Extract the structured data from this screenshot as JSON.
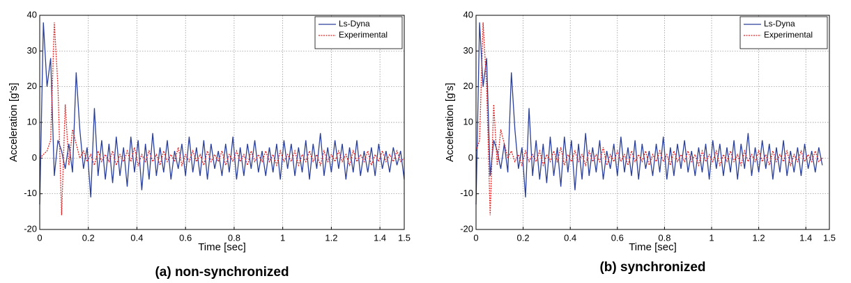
{
  "chart_data": [
    {
      "type": "line",
      "caption": "(a)  non-synchronized",
      "xlabel": "Time [sec]",
      "ylabel": "Acceleration [g's]",
      "x": [
        0,
        0.015,
        0.03,
        0.045,
        0.06,
        0.075,
        0.09,
        0.105,
        0.12,
        0.135,
        0.15,
        0.165,
        0.18,
        0.195,
        0.21,
        0.225,
        0.24,
        0.255,
        0.27,
        0.285,
        0.3,
        0.315,
        0.33,
        0.345,
        0.36,
        0.375,
        0.39,
        0.405,
        0.42,
        0.435,
        0.45,
        0.465,
        0.48,
        0.495,
        0.51,
        0.525,
        0.54,
        0.555,
        0.57,
        0.585,
        0.6,
        0.615,
        0.63,
        0.645,
        0.66,
        0.675,
        0.69,
        0.705,
        0.72,
        0.735,
        0.75,
        0.765,
        0.78,
        0.795,
        0.81,
        0.825,
        0.84,
        0.855,
        0.87,
        0.885,
        0.9,
        0.915,
        0.93,
        0.945,
        0.96,
        0.975,
        0.99,
        1.005,
        1.02,
        1.035,
        1.05,
        1.065,
        1.08,
        1.095,
        1.11,
        1.125,
        1.14,
        1.155,
        1.17,
        1.185,
        1.2,
        1.215,
        1.23,
        1.245,
        1.26,
        1.275,
        1.29,
        1.305,
        1.32,
        1.335,
        1.35,
        1.365,
        1.38,
        1.395,
        1.41,
        1.425,
        1.44,
        1.455,
        1.47,
        1.485,
        1.5
      ],
      "series": [
        {
          "name": "Ls-Dyna",
          "color": "#2a3f9a",
          "dash": "solid",
          "values": [
            -13,
            38,
            20,
            28,
            -5,
            5,
            2,
            -3,
            4,
            -4,
            24,
            8,
            -3,
            3,
            -11,
            14,
            -5,
            5,
            -6,
            4,
            -7,
            6,
            -5,
            3,
            -8,
            6,
            -4,
            5,
            -9,
            4,
            -6,
            7,
            -5,
            3,
            -4,
            5,
            -6,
            2,
            -3,
            4,
            -5,
            6,
            -4,
            3,
            -5,
            5,
            -6,
            4,
            -3,
            2,
            -5,
            4,
            -4,
            6,
            -6,
            3,
            -5,
            4,
            -3,
            5,
            -4,
            2,
            -5,
            3,
            -4,
            4,
            -6,
            5,
            -3,
            4,
            -5,
            3,
            -4,
            5,
            -6,
            4,
            -3,
            7,
            -5,
            3,
            -4,
            5,
            -3,
            4,
            -6,
            3,
            -4,
            5,
            -5,
            2,
            -4,
            3,
            -5,
            4,
            -3,
            2,
            -4,
            3,
            -2,
            2,
            -6
          ]
        },
        {
          "name": "Experimental",
          "color": "#e02020",
          "dash": "dotted",
          "values": [
            0,
            1,
            2,
            5,
            38,
            20,
            -16,
            15,
            -2,
            8,
            4,
            0,
            2,
            -1,
            1,
            -2,
            2,
            -1,
            1,
            -1,
            2,
            -2,
            1,
            -1,
            2,
            -1,
            3,
            -2,
            1,
            -1,
            2,
            -1,
            1,
            -2,
            2,
            -1,
            1,
            -1,
            3,
            -2,
            1,
            -1,
            2,
            -1,
            1,
            -2,
            2,
            -1,
            1,
            -1,
            2,
            -2,
            1,
            -1,
            2,
            -1,
            1,
            -2,
            2,
            -1,
            1,
            -1,
            2,
            -1,
            1,
            -2,
            2,
            -1,
            1,
            -1,
            2,
            -2,
            1,
            -1,
            2,
            -1,
            1,
            -2,
            2,
            -1,
            1,
            -1,
            2,
            -1,
            1,
            -2,
            2,
            -1,
            1,
            -1,
            2,
            -2,
            1,
            -1,
            2,
            -1,
            1,
            -1,
            2,
            -1,
            0
          ]
        }
      ],
      "xlim": [
        0,
        1.5
      ],
      "ylim": [
        -20,
        40
      ],
      "xticks": [
        0,
        0.2,
        0.4,
        0.6,
        0.8,
        1,
        1.2,
        1.4,
        1.5
      ],
      "yticks": [
        -20,
        -10,
        0,
        10,
        20,
        30,
        40
      ],
      "grid": true,
      "legend": "upper-right"
    },
    {
      "type": "line",
      "caption": "(b)  synchronized",
      "xlabel": "Time [sec]",
      "ylabel": "Acceleration [g's]",
      "x": [
        0,
        0.015,
        0.03,
        0.045,
        0.06,
        0.075,
        0.09,
        0.105,
        0.12,
        0.135,
        0.15,
        0.165,
        0.18,
        0.195,
        0.21,
        0.225,
        0.24,
        0.255,
        0.27,
        0.285,
        0.3,
        0.315,
        0.33,
        0.345,
        0.36,
        0.375,
        0.39,
        0.405,
        0.42,
        0.435,
        0.45,
        0.465,
        0.48,
        0.495,
        0.51,
        0.525,
        0.54,
        0.555,
        0.57,
        0.585,
        0.6,
        0.615,
        0.63,
        0.645,
        0.66,
        0.675,
        0.69,
        0.705,
        0.72,
        0.735,
        0.75,
        0.765,
        0.78,
        0.795,
        0.81,
        0.825,
        0.84,
        0.855,
        0.87,
        0.885,
        0.9,
        0.915,
        0.93,
        0.945,
        0.96,
        0.975,
        0.99,
        1.005,
        1.02,
        1.035,
        1.05,
        1.065,
        1.08,
        1.095,
        1.11,
        1.125,
        1.14,
        1.155,
        1.17,
        1.185,
        1.2,
        1.215,
        1.23,
        1.245,
        1.26,
        1.275,
        1.29,
        1.305,
        1.32,
        1.335,
        1.35,
        1.365,
        1.38,
        1.395,
        1.41,
        1.425,
        1.44,
        1.455,
        1.47
      ],
      "series": [
        {
          "name": "Ls-Dyna",
          "color": "#2a3f9a",
          "dash": "solid",
          "values": [
            -13,
            38,
            20,
            28,
            -5,
            5,
            2,
            -3,
            4,
            -4,
            24,
            8,
            -3,
            3,
            -11,
            14,
            -5,
            5,
            -6,
            4,
            -7,
            6,
            -5,
            3,
            -8,
            6,
            -4,
            5,
            -9,
            4,
            -6,
            7,
            -5,
            3,
            -4,
            5,
            -6,
            2,
            -3,
            4,
            -5,
            6,
            -4,
            3,
            -5,
            5,
            -6,
            4,
            -3,
            2,
            -5,
            4,
            -4,
            6,
            -6,
            3,
            -5,
            4,
            -3,
            5,
            -4,
            2,
            -5,
            3,
            -4,
            4,
            -6,
            5,
            -3,
            4,
            -5,
            3,
            -4,
            5,
            -6,
            4,
            -3,
            7,
            -5,
            3,
            -4,
            5,
            -3,
            4,
            -6,
            3,
            -4,
            5,
            -5,
            2,
            -4,
            3,
            -5,
            4,
            -3,
            2,
            -4,
            3,
            -2
          ]
        },
        {
          "name": "Experimental",
          "color": "#e02020",
          "dash": "dotted",
          "values": [
            2,
            5,
            38,
            20,
            -16,
            15,
            -2,
            8,
            4,
            0,
            2,
            -1,
            1,
            -2,
            2,
            -1,
            1,
            -1,
            2,
            -2,
            1,
            -1,
            2,
            -1,
            3,
            -2,
            1,
            -1,
            2,
            -1,
            1,
            -2,
            2,
            -1,
            1,
            -1,
            3,
            -2,
            1,
            -1,
            2,
            -1,
            1,
            -2,
            2,
            -1,
            1,
            -1,
            2,
            -2,
            1,
            -1,
            2,
            -1,
            1,
            -2,
            2,
            -1,
            1,
            -1,
            2,
            -1,
            1,
            -2,
            2,
            -1,
            1,
            -1,
            2,
            -2,
            1,
            -1,
            2,
            -1,
            1,
            -2,
            2,
            -1,
            1,
            -1,
            2,
            -1,
            1,
            -2,
            2,
            -1,
            1,
            -1,
            2,
            -2,
            1,
            -1,
            2,
            -1,
            1,
            -1,
            2,
            -1,
            0
          ]
        }
      ],
      "xlim": [
        0,
        1.5
      ],
      "ylim": [
        -20,
        40
      ],
      "xticks": [
        0,
        0.2,
        0.4,
        0.6,
        0.8,
        1,
        1.2,
        1.4,
        1.5
      ],
      "yticks": [
        -20,
        -10,
        0,
        10,
        20,
        30,
        40
      ],
      "grid": true,
      "legend": "upper-right"
    }
  ]
}
